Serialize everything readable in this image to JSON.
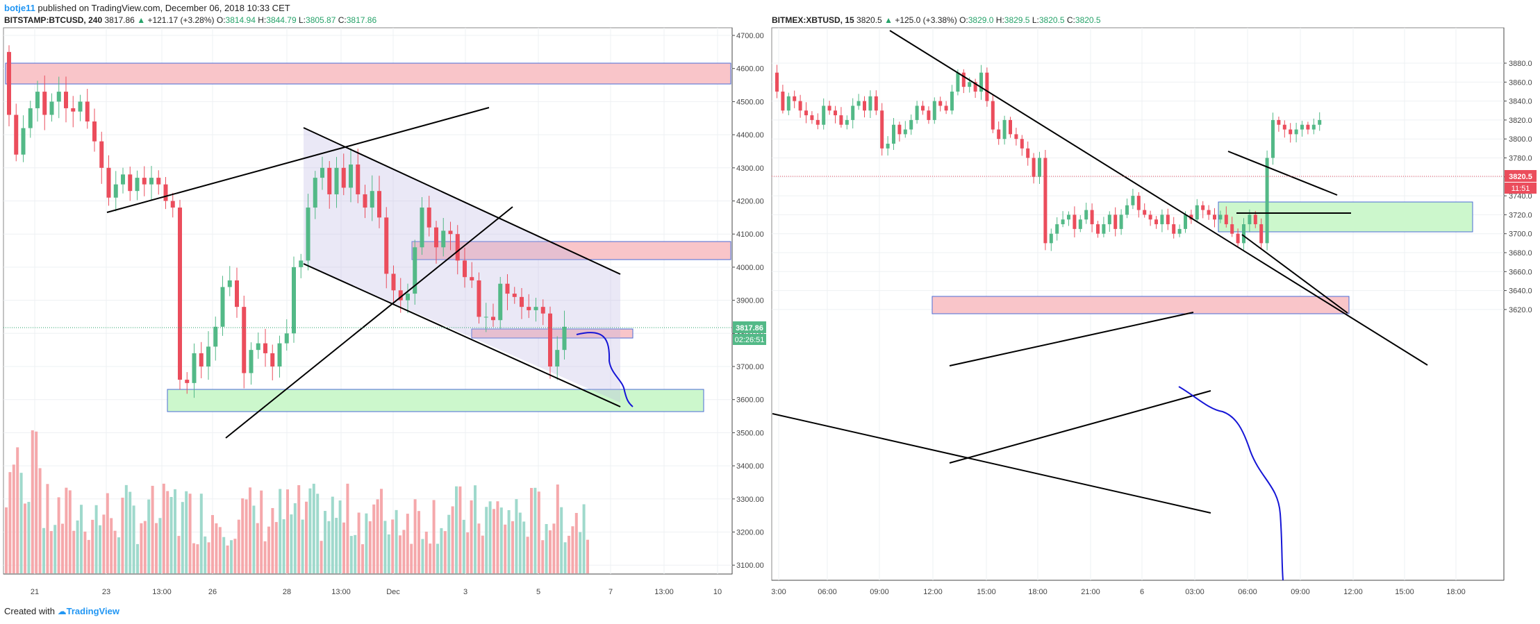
{
  "header": {
    "user": "botje11",
    "published": "published on TradingView.com, December 06, 2018 10:33 CET"
  },
  "footer": {
    "created_with": "Created with",
    "brand": "TradingView"
  },
  "chart_data": [
    {
      "type": "candlestick",
      "symbol": "BITSTAMP:BTCUSD, 240",
      "last": "3817.86",
      "change": "+121.17 (+3.28%)",
      "open": "3814.94",
      "high": "3844.79",
      "low": "3805.87",
      "close": "3817.86",
      "ylim": [
        3050,
        4730
      ],
      "yticks": [
        "4700.00",
        "4600.00",
        "4500.00",
        "4400.00",
        "4300.00",
        "4200.00",
        "4100.00",
        "4000.00",
        "3900.00",
        "3800.00",
        "3700.00",
        "3600.00",
        "3500.00",
        "3400.00",
        "3300.00",
        "3200.00",
        "3100.00"
      ],
      "xticks": [
        "21",
        "23",
        "13:00",
        "26",
        "28",
        "13:00",
        "Dec",
        "3",
        "5",
        "7",
        "13:00",
        "10"
      ],
      "price_label": "3817.86",
      "timer_label": "02:26:51",
      "colors": {
        "up": "#53b987",
        "down": "#eb4d5c",
        "vol_up": "#9fd9cc",
        "vol_down": "#f5a8ab"
      }
    },
    {
      "type": "candlestick",
      "symbol": "BITMEX:XBTUSD, 15",
      "last": "3820.5",
      "change": "+125.0 (+3.38%)",
      "open": "3829.0",
      "high": "3829.5",
      "low": "3820.5",
      "close": "3820.5",
      "ylim": [
        3605,
        3895
      ],
      "yticks": [
        "3880.0",
        "3860.0",
        "3840.0",
        "3820.0",
        "3800.0",
        "3780.0",
        "3760.0",
        "3740.0",
        "3720.0",
        "3700.0",
        "3680.0",
        "3660.0",
        "3640.0",
        "3620.0"
      ],
      "xticks": [
        "3:00",
        "06:00",
        "09:00",
        "12:00",
        "15:00",
        "18:00",
        "21:00",
        "6",
        "03:00",
        "06:00",
        "09:00",
        "12:00",
        "15:00",
        "18:00"
      ],
      "price_label": "3820.5",
      "timer_label": "11:51",
      "colors": {
        "up": "#53b987",
        "down": "#eb4d5c"
      }
    }
  ]
}
